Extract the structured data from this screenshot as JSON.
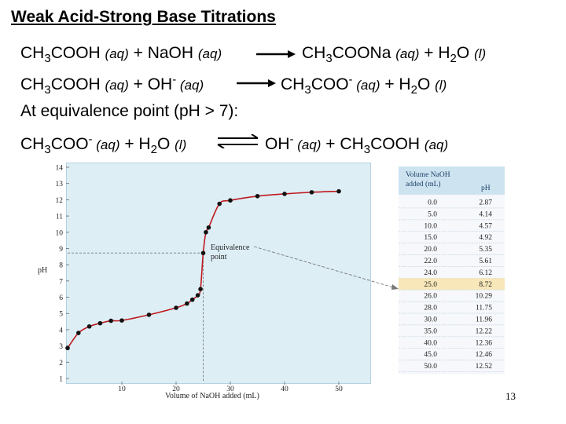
{
  "slide": {
    "title": "Weak Acid-Strong Base Titrations",
    "page_number": "13",
    "eq1": {
      "l1": "CH",
      "l1s": "3",
      "l2": "COOH ",
      "l3": "(aq)",
      "l4": " + NaOH ",
      "l5": "(aq)",
      "r1": "CH",
      "r1s": "3",
      "r2": "COONa ",
      "r3": "(aq)",
      "r4": " + H",
      "r4s": "2",
      "r5": "O ",
      "r6": "(l)"
    },
    "eq2": {
      "l1": "CH",
      "l1s": "3",
      "l2": "COOH ",
      "l3": "(aq)",
      "l4": " + OH",
      "l4sup": "-",
      "l5": " (aq)",
      "r1": "CH",
      "r1s": "3",
      "r2": "COO",
      "r2sup": "-",
      "r3": " (aq)",
      "r4": " + H",
      "r4s": "2",
      "r5": "O ",
      "r6": "(l)"
    },
    "equivalence_line": "At equivalence point (pH > 7):",
    "eq3": {
      "l1": "CH",
      "l1s": "3",
      "l2": "COO",
      "l2sup": "-",
      "l3": " (aq)",
      "l4": " + H",
      "l4s": "2",
      "l5": "O ",
      "l6": "(l)",
      "r1": "OH",
      "r1sup": "-",
      "r2": " (aq)",
      "r3": " + CH",
      "r3s": "3",
      "r4": "COOH ",
      "r5": "(aq)"
    }
  },
  "chart_data": {
    "type": "line",
    "xlabel": "Volume of NaOH added (mL)",
    "ylabel": "pH",
    "xlim": [
      0,
      50
    ],
    "ylim": [
      1,
      14
    ],
    "x_ticks": [
      "10",
      "20",
      "30",
      "40",
      "50"
    ],
    "y_ticks": [
      "1",
      "2",
      "3",
      "4",
      "5",
      "6",
      "7",
      "8",
      "9",
      "10",
      "11",
      "12",
      "13",
      "14"
    ],
    "annotation": "Equivalence point",
    "annotation_lines": [
      "Equivalence",
      "point"
    ],
    "equivalence_volume": 25.0,
    "equivalence_pH": 8.72,
    "curve_color": "#c0191f",
    "point_color": "#111111",
    "background_color": "#ddeef5",
    "x": [
      0.0,
      2.0,
      4.0,
      6.0,
      8.0,
      10.0,
      15.0,
      20.0,
      22.0,
      23.0,
      24.0,
      24.5,
      25.0,
      25.5,
      26.0,
      28.0,
      30.0,
      35.0,
      40.0,
      45.0,
      50.0
    ],
    "y": [
      2.87,
      3.8,
      4.2,
      4.4,
      4.55,
      4.57,
      4.92,
      5.35,
      5.61,
      5.85,
      6.12,
      6.5,
      8.72,
      10.0,
      10.29,
      11.75,
      11.96,
      12.22,
      12.36,
      12.46,
      12.52
    ]
  },
  "table": {
    "header_col1_line1": "Volume NaOH",
    "header_col1_line2": "added (mL)",
    "header_col2": "pH",
    "highlight_row": 8,
    "rows": [
      [
        "0.0",
        "2.87"
      ],
      [
        "5.0",
        "4.14"
      ],
      [
        "10.0",
        "4.57"
      ],
      [
        "15.0",
        "4.92"
      ],
      [
        "20.0",
        "5.35"
      ],
      [
        "22.0",
        "5.61"
      ],
      [
        "24.0",
        "6.12"
      ],
      [
        "25.0",
        "8.72"
      ],
      [
        "26.0",
        "10.29"
      ],
      [
        "28.0",
        "11.75"
      ],
      [
        "30.0",
        "11.96"
      ],
      [
        "35.0",
        "12.22"
      ],
      [
        "40.0",
        "12.36"
      ],
      [
        "45.0",
        "12.46"
      ],
      [
        "50.0",
        "12.52"
      ]
    ]
  }
}
